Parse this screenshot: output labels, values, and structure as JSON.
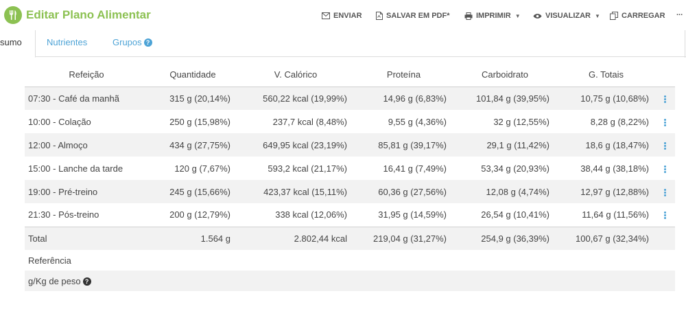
{
  "header": {
    "title": "Editar Plano Alimentar",
    "actions": {
      "enviar": "ENVIAR",
      "salvar_pdf": "SALVAR EM PDF*",
      "imprimir": "IMPRIMIR",
      "visualizar": "VISUALIZAR",
      "carregar": "CARREGAR",
      "more": "..."
    }
  },
  "tabs": {
    "resumo": "sumo",
    "nutrientes": "Nutrientes",
    "grupos": "Grupos"
  },
  "table": {
    "headers": [
      "Refeição",
      "Quantidade",
      "V. Calórico",
      "Proteína",
      "Carboidrato",
      "G. Totais"
    ],
    "rows": [
      {
        "refeicao": "07:30 - Café da manhã",
        "quantidade": "315 g (20,14%)",
        "calorico": "560,22 kcal (19,99%)",
        "proteina": "14,96 g (6,83%)",
        "carboidrato": "101,84 g (39,95%)",
        "gorduras": "10,75 g (10,68%)"
      },
      {
        "refeicao": "10:00 - Colação",
        "quantidade": "250 g (15,98%)",
        "calorico": "237,7 kcal (8,48%)",
        "proteina": "9,55 g (4,36%)",
        "carboidrato": "32 g (12,55%)",
        "gorduras": "8,28 g (8,22%)"
      },
      {
        "refeicao": "12:00 - Almoço",
        "quantidade": "434 g (27,75%)",
        "calorico": "649,95 kcal (23,19%)",
        "proteina": "85,81 g (39,17%)",
        "carboidrato": "29,1 g (11,42%)",
        "gorduras": "18,6 g (18,47%)"
      },
      {
        "refeicao": "15:00 - Lanche da tarde",
        "quantidade": "120 g (7,67%)",
        "calorico": "593,2 kcal (21,17%)",
        "proteina": "16,41 g (7,49%)",
        "carboidrato": "53,34 g (20,93%)",
        "gorduras": "38,44 g (38,18%)"
      },
      {
        "refeicao": "19:00 - Pré-treino",
        "quantidade": "245 g (15,66%)",
        "calorico": "423,37 kcal (15,11%)",
        "proteina": "60,36 g (27,56%)",
        "carboidrato": "12,08 g (4,74%)",
        "gorduras": "12,97 g (12,88%)"
      },
      {
        "refeicao": "21:30 - Pós-treino",
        "quantidade": "200 g (12,79%)",
        "calorico": "338 kcal (12,06%)",
        "proteina": "31,95 g (14,59%)",
        "carboidrato": "26,54 g (10,41%)",
        "gorduras": "11,64 g (11,56%)"
      }
    ],
    "total": {
      "label": "Total",
      "quantidade": "1.564 g",
      "calorico": "2.802,44 kcal",
      "proteina": "219,04 g (31,27%)",
      "carboidrato": "254,9 g (36,39%)",
      "gorduras": "100,67 g (32,34%)"
    },
    "referencia_label": "Referência",
    "gkg_label": "g/Kg de peso"
  },
  "colors": {
    "brand_green": "#8cc152",
    "link_blue": "#4da3d6"
  }
}
